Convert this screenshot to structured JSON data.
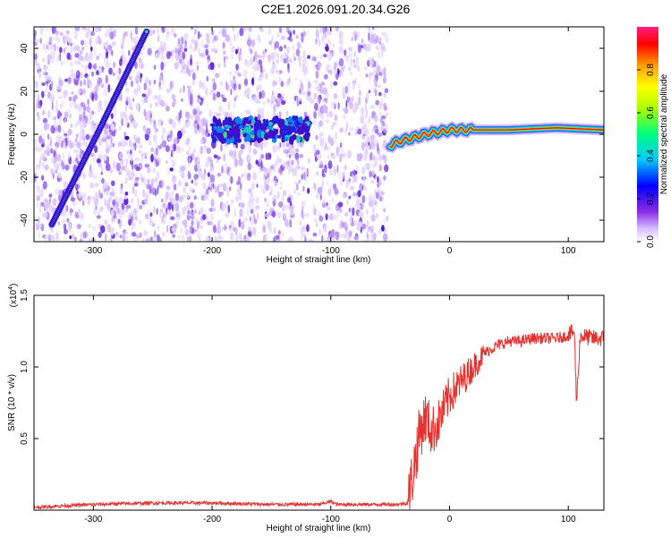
{
  "title": "C2E1.2026.091.20.34.G26",
  "colors": {
    "snr_line": "#e8302c",
    "background_noise": "#7a44e0",
    "axis": "#000000"
  },
  "chart_data": [
    {
      "type": "heatmap",
      "xlabel": "Height of straight line (km)",
      "ylabel": "Frequency (Hz)",
      "xlim": [
        -350,
        130
      ],
      "ylim": [
        -50,
        50
      ],
      "xticks": [
        "-300",
        "-200",
        "-100",
        "0",
        "100"
      ],
      "yticks": [
        "-40",
        "-20",
        "0",
        "20",
        "40"
      ],
      "colorbar": {
        "label": "Normalized spectral amplitude",
        "range": [
          0,
          1
        ],
        "ticks": [
          "0.0",
          "0.2",
          "0.4",
          "0.6",
          "0.8"
        ],
        "colormap": [
          "#8a2be2",
          "#0000ff",
          "#00c8ff",
          "#00ff80",
          "#aaff00",
          "#ffff00",
          "#ffa000",
          "#ff0000",
          "#ff2080"
        ]
      },
      "noise_region_x": [
        -350,
        -52
      ],
      "gap_region_x": [
        -118,
        -114
      ],
      "features": [
        {
          "name": "descending chirp",
          "x": [
            -335,
            -295,
            -255
          ],
          "y": [
            -42,
            2,
            48
          ],
          "amplitude": 0.35
        },
        {
          "name": "broad band",
          "x": [
            -200,
            -118
          ],
          "y": [
            0,
            10
          ],
          "amplitude": 0.4
        },
        {
          "name": "direct signal",
          "x": [
            -50,
            -40,
            -20,
            0,
            50,
            90,
            130
          ],
          "y": [
            -5,
            -3,
            0,
            2,
            2,
            3,
            2
          ],
          "amplitude": 0.95
        }
      ]
    },
    {
      "type": "line",
      "xlabel": "Height of straight line (km)",
      "ylabel": "SNR (10 * v/v)",
      "multiplier": "(x10",
      "multiplier_exp": "4",
      "multiplier_close": ")",
      "xlim": [
        -350,
        130
      ],
      "ylim": [
        0,
        1.5
      ],
      "xticks": [
        "-300",
        "-200",
        "-100",
        "0",
        "100"
      ],
      "yticks": [
        "0.5",
        "1.0",
        "1.5"
      ],
      "series": [
        {
          "x": [
            -350,
            -300,
            -250,
            -200,
            -150,
            -110,
            -100,
            -95,
            -80,
            -60,
            -45,
            -35,
            -30,
            -25,
            -20,
            -15,
            -10,
            -5,
            0,
            5,
            10,
            15,
            20,
            25,
            30,
            40,
            50,
            60,
            70,
            80,
            90,
            100,
            105,
            107,
            110,
            120,
            130
          ],
          "y": [
            0.02,
            0.04,
            0.05,
            0.05,
            0.04,
            0.04,
            0.06,
            0.04,
            0.04,
            0.04,
            0.04,
            0.05,
            0.3,
            0.55,
            0.65,
            0.55,
            0.6,
            0.7,
            0.8,
            0.85,
            0.9,
            0.95,
            1.0,
            1.05,
            1.1,
            1.15,
            1.18,
            1.18,
            1.2,
            1.2,
            1.2,
            1.22,
            1.25,
            0.75,
            1.22,
            1.2,
            1.2
          ]
        }
      ]
    }
  ]
}
